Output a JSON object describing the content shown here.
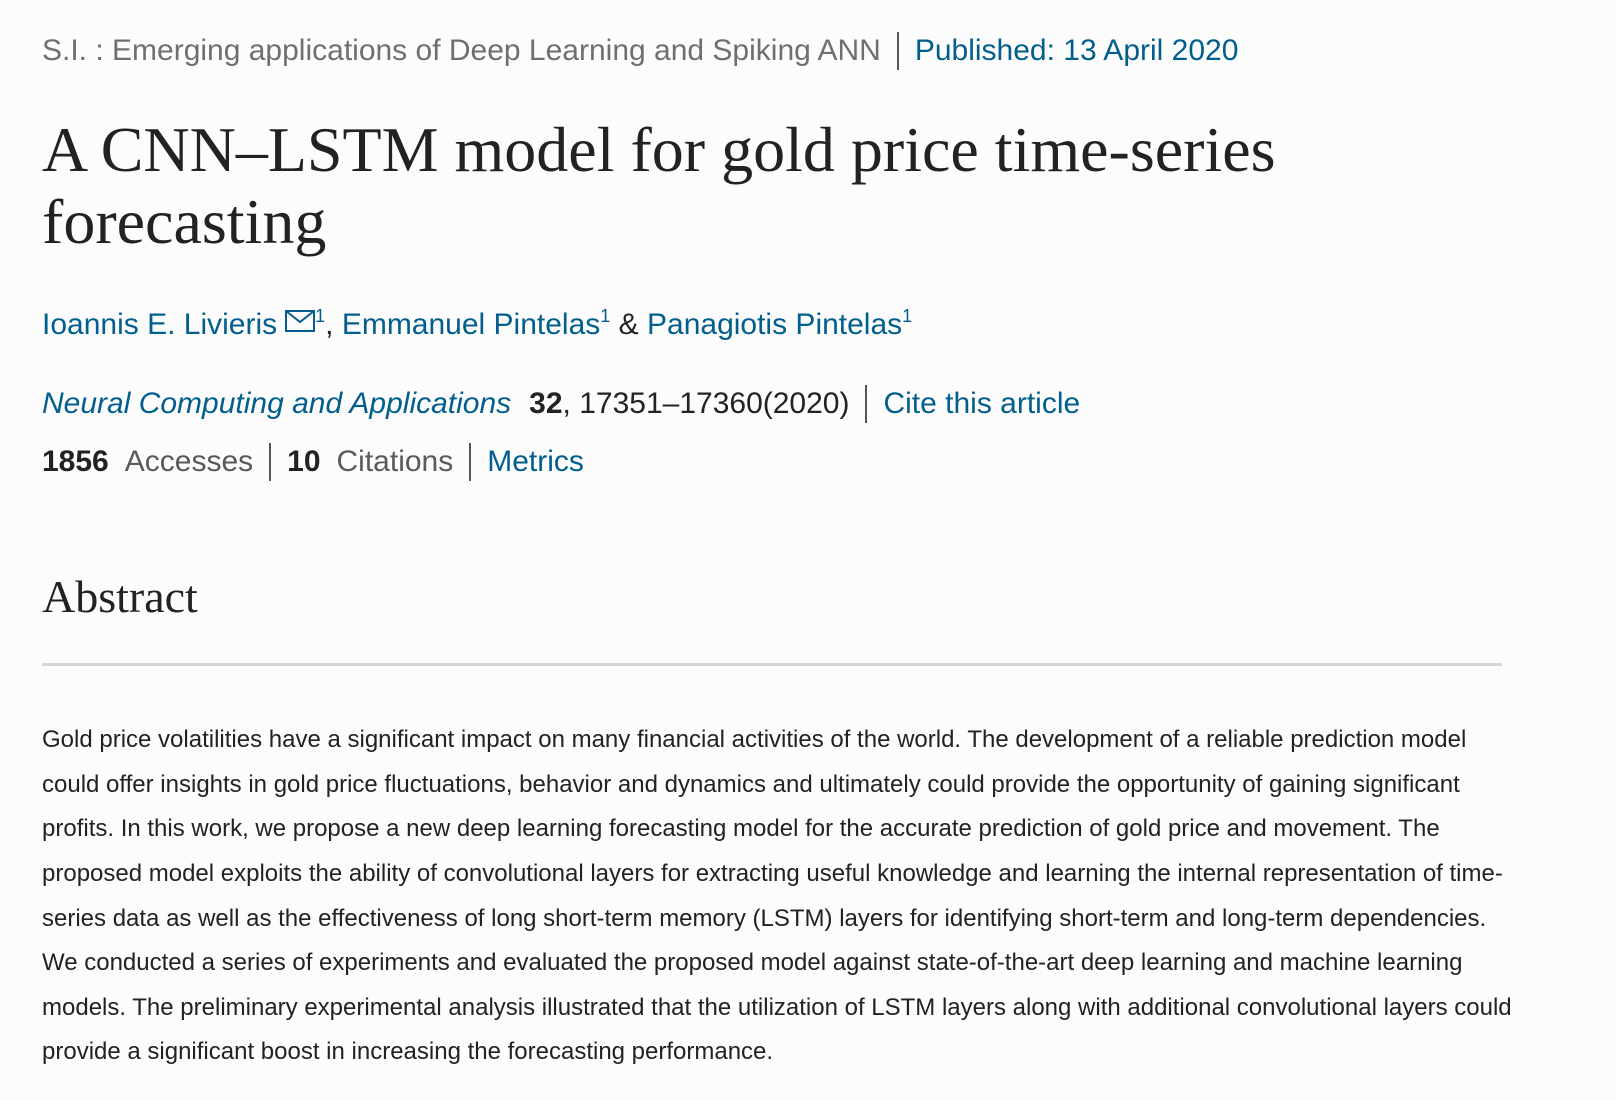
{
  "header": {
    "series": "S.I. : Emerging applications of Deep Learning and Spiking ANN",
    "published": "Published: 13 April 2020"
  },
  "title": "A CNN–LSTM model for gold price time-series forecasting",
  "authors": [
    {
      "name": "Ioannis E. Livieris",
      "affiliation": "1",
      "has_mail_icon": true
    },
    {
      "name": "Emmanuel Pintelas",
      "affiliation": "1"
    },
    {
      "name": "Panagiotis Pintelas",
      "affiliation": "1"
    }
  ],
  "separators": {
    "comma": ",",
    "ampersand": "&"
  },
  "citation": {
    "journal": "Neural Computing and Applications",
    "volume": "32",
    "pages_year": ", 17351–17360(2020)",
    "cite_link": "Cite this article"
  },
  "metrics": {
    "accesses_count": "1856",
    "accesses_label": "Accesses",
    "citations_count": "10",
    "citations_label": "Citations",
    "metrics_link": "Metrics"
  },
  "abstract": {
    "heading": "Abstract",
    "text": "Gold price volatilities have a significant impact on many financial activities of the world. The development of a reliable prediction model could offer insights in gold price fluctuations, behavior and dynamics and ultimately could provide the opportunity of gaining significant profits. In this work, we propose a new deep learning forecasting model for the accurate prediction of gold price and movement. The proposed model exploits the ability of convolutional layers for extracting useful knowledge and learning the internal representation of time-series data as well as the effectiveness of long short-term memory (LSTM) layers for identifying short-term and long-term dependencies. We conducted a series of experiments and evaluated the proposed model against state-of-the-art deep learning and machine learning models. The preliminary experimental analysis illustrated that the utilization of LSTM layers along with additional convolutional layers could provide a significant boost in increasing the forecasting performance."
  },
  "colors": {
    "link": "#025e8d",
    "text": "#222222",
    "muted": "#6f6f6f",
    "rule": "#d5d5d5"
  }
}
